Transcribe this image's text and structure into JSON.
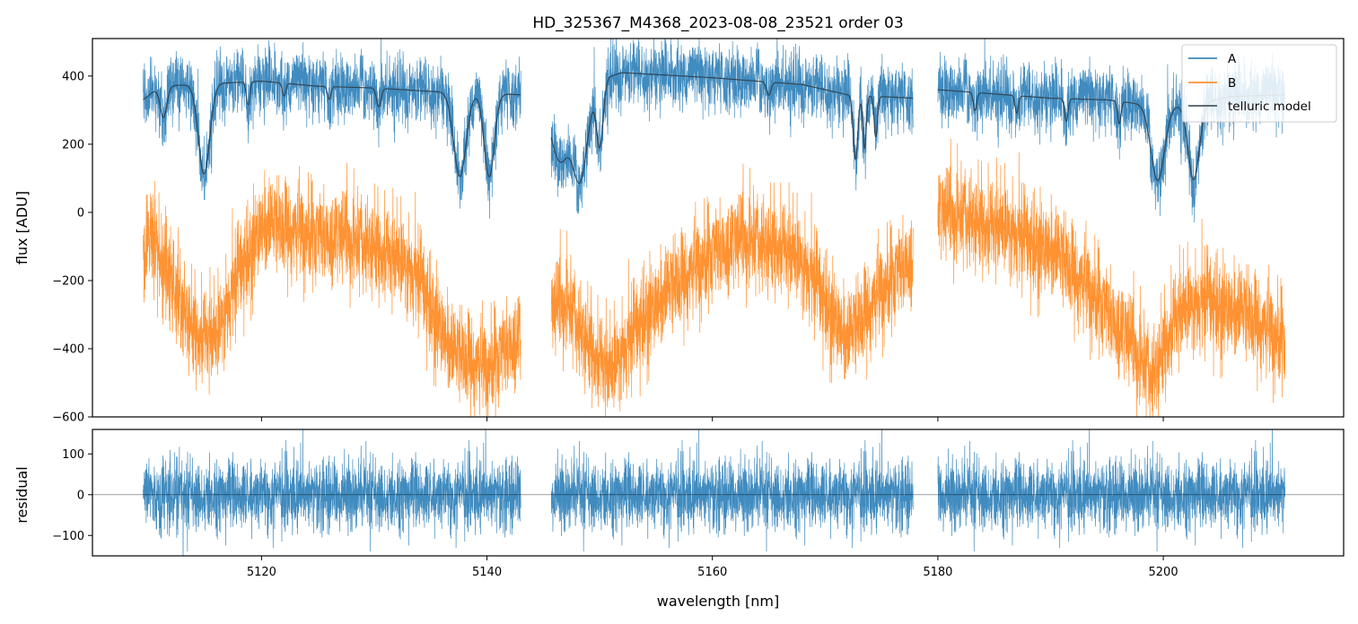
{
  "chart_data": {
    "type": "line",
    "title": "HD_325367_M4368_2023-08-08_23521  order 03",
    "xlabel": "wavelength [nm]",
    "xlim": [
      5105,
      5216
    ],
    "xticks": [
      5120,
      5140,
      5160,
      5180,
      5200
    ],
    "panels": [
      {
        "id": "flux",
        "ylabel": "flux [ADU]",
        "ylim": [
          -600,
          510
        ],
        "yticks": [
          -600,
          -400,
          -200,
          0,
          200,
          400
        ],
        "legend": {
          "position": "top-right",
          "entries": [
            "A",
            "B",
            "telluric model"
          ]
        },
        "segments": [
          [
            5109.5,
            5143.0
          ],
          [
            5145.7,
            5177.8
          ],
          [
            5180.0,
            5210.8
          ]
        ],
        "series": [
          {
            "name": "A",
            "color": "#1f77b4",
            "continuum": [
              [
                5109.5,
                330
              ],
              [
                5111,
                370
              ],
              [
                5120,
                385
              ],
              [
                5125,
                370
              ],
              [
                5130,
                365
              ],
              [
                5135,
                355
              ],
              [
                5143,
                345
              ],
              [
                5145.7,
                330
              ],
              [
                5150,
                390
              ],
              [
                5152,
                410
              ],
              [
                5160,
                395
              ],
              [
                5168,
                375
              ],
              [
                5172,
                345
              ],
              [
                5177.8,
                335
              ],
              [
                5180,
                360
              ],
              [
                5190,
                335
              ],
              [
                5195,
                330
              ],
              [
                5200,
                310
              ],
              [
                5203,
                320
              ],
              [
                5206,
                340
              ],
              [
                5210.8,
                345
              ]
            ],
            "noise": 45,
            "absorption_lines": [
              [
                5111.3,
                0.25,
                0.3
              ],
              [
                5114.9,
                0.7,
                0.5
              ],
              [
                5118.8,
                0.18,
                0.15
              ],
              [
                5122.0,
                0.1,
                0.15
              ],
              [
                5126.0,
                0.1,
                0.15
              ],
              [
                5130.4,
                0.15,
                0.2
              ],
              [
                5137.6,
                0.7,
                0.55
              ],
              [
                5140.2,
                0.7,
                0.45
              ],
              [
                5146.5,
                0.55,
                0.8
              ],
              [
                5148.2,
                0.75,
                0.7
              ],
              [
                5150.0,
                0.5,
                0.3
              ],
              [
                5165.0,
                0.1,
                0.2
              ],
              [
                5172.7,
                0.55,
                0.2
              ],
              [
                5173.5,
                0.45,
                0.15
              ],
              [
                5174.5,
                0.35,
                0.15
              ],
              [
                5183.3,
                0.15,
                0.15
              ],
              [
                5187.0,
                0.15,
                0.15
              ],
              [
                5191.4,
                0.2,
                0.15
              ],
              [
                5196.1,
                0.2,
                0.15
              ],
              [
                5199.5,
                0.7,
                0.6
              ],
              [
                5202.7,
                0.7,
                0.5
              ]
            ]
          },
          {
            "name": "B",
            "color": "#ff7f0e",
            "continuum": [
              [
                5109.5,
                -100
              ],
              [
                5110,
                -60
              ],
              [
                5112,
                -200
              ],
              [
                5114,
                -340
              ],
              [
                5116,
                -380
              ],
              [
                5118,
                -180
              ],
              [
                5120,
                -40
              ],
              [
                5125,
                -70
              ],
              [
                5130,
                -90
              ],
              [
                5134,
                -200
              ],
              [
                5137,
                -420
              ],
              [
                5140,
                -460
              ],
              [
                5143,
                -360
              ],
              [
                5145.7,
                -300
              ],
              [
                5147,
                -260
              ],
              [
                5149,
                -380
              ],
              [
                5151,
                -480
              ],
              [
                5154,
                -300
              ],
              [
                5157,
                -210
              ],
              [
                5160,
                -120
              ],
              [
                5163,
                -80
              ],
              [
                5166,
                -90
              ],
              [
                5169,
                -200
              ],
              [
                5172,
                -380
              ],
              [
                5175,
                -230
              ],
              [
                5177.8,
                -130
              ],
              [
                5180,
                -10
              ],
              [
                5183,
                -10
              ],
              [
                5186,
                -60
              ],
              [
                5190,
                -110
              ],
              [
                5194,
                -250
              ],
              [
                5197,
                -380
              ],
              [
                5199,
                -480
              ],
              [
                5201,
                -310
              ],
              [
                5204,
                -260
              ],
              [
                5207,
                -300
              ],
              [
                5210.8,
                -380
              ]
            ],
            "noise": 70
          },
          {
            "name": "telluric model",
            "color": "#2f3e4a"
          }
        ]
      },
      {
        "id": "residual",
        "ylabel": "residual",
        "ylim": [
          -150,
          160
        ],
        "yticks": [
          -100,
          0,
          100
        ],
        "reference_line": 0,
        "series": [
          {
            "name": "residual",
            "color": "#1f77b4",
            "noise": 42
          }
        ]
      }
    ]
  }
}
